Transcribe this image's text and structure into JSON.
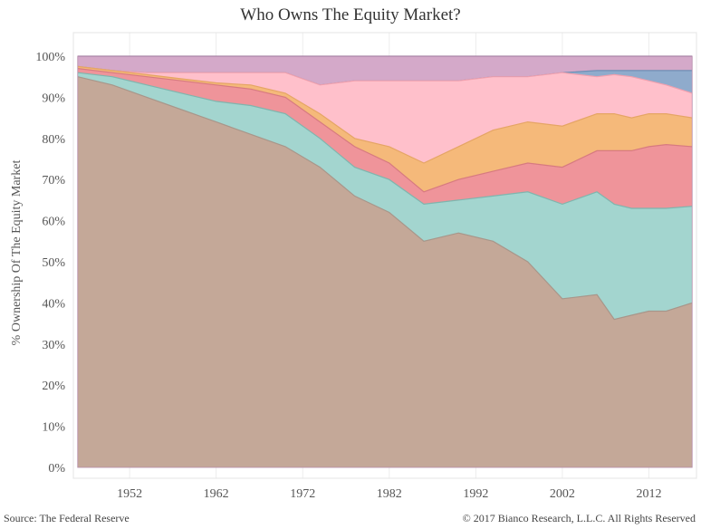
{
  "chart_data": {
    "type": "area",
    "stacked": true,
    "title": "Who Owns The Equity Market?",
    "ylabel": "% Ownership Of The Equity Market",
    "xlabel": "",
    "source": "Source: The Federal Reserve",
    "copyright": "© 2017 Bianco Research, L.L.C. All Rights Reserved",
    "xlim": [
      1945.5,
      2017.5
    ],
    "ylim": [
      0,
      100
    ],
    "x_ticks": [
      1952,
      1962,
      1972,
      1982,
      1992,
      2002,
      2012
    ],
    "x_tick_labels": [
      "1952",
      "1962",
      "1972",
      "1982",
      "1992",
      "2002",
      "2012"
    ],
    "y_ticks": [
      0,
      10,
      20,
      30,
      40,
      50,
      60,
      70,
      80,
      90,
      100
    ],
    "y_tick_labels": [
      "0%",
      "10%",
      "20%",
      "30%",
      "40%",
      "50%",
      "60%",
      "70%",
      "80%",
      "90%",
      "100%"
    ],
    "grid": "vertical",
    "legend": "none",
    "x": [
      1946,
      1950,
      1954,
      1958,
      1962,
      1966,
      1970,
      1974,
      1978,
      1982,
      1986,
      1990,
      1994,
      1998,
      2002,
      2006,
      2008,
      2010,
      2012,
      2014,
      2017
    ],
    "upper_edges": [
      [
        95,
        93,
        90,
        87,
        84,
        81,
        78,
        73,
        66,
        62,
        55,
        57,
        55,
        50,
        41,
        42,
        36,
        37,
        38,
        38,
        40
      ],
      [
        96,
        95,
        93,
        91,
        89,
        88,
        86,
        80,
        73,
        70,
        64,
        65,
        66,
        67,
        64,
        67,
        64,
        63,
        63,
        63,
        63.5
      ],
      [
        97,
        96,
        95,
        94,
        93,
        92,
        90,
        84,
        78,
        74,
        67,
        70,
        72,
        74,
        73,
        77,
        77,
        77,
        78,
        78.5,
        78
      ],
      [
        97.5,
        96.5,
        95.5,
        94.5,
        93.5,
        93,
        91,
        86,
        80,
        78,
        74,
        78,
        82,
        84,
        83,
        86,
        86,
        85,
        86,
        86,
        85
      ],
      [
        97.5,
        96.5,
        96,
        96,
        96,
        96,
        96,
        93,
        94,
        94,
        94,
        94,
        95,
        95,
        96,
        95,
        95.5,
        95,
        94,
        93,
        91
      ],
      [
        97.5,
        96.5,
        96,
        96,
        96,
        96,
        96,
        93,
        94,
        94,
        94,
        94,
        95,
        95,
        96,
        96.5,
        96.5,
        96.5,
        96.5,
        96.5,
        96.5
      ],
      [
        100,
        100,
        100,
        100,
        100,
        100,
        100,
        100,
        100,
        100,
        100,
        100,
        100,
        100,
        100,
        100,
        100,
        100,
        100,
        100,
        100
      ]
    ],
    "series_colors": [
      "#c4a898",
      "#a3d5cf",
      "#ef949a",
      "#f5b97a",
      "#ffc0cb",
      "#8fabcc",
      "#d4a9c9"
    ],
    "series_lines": [
      "#a8968a",
      "#7fb5ae",
      "#d77a80",
      "#e5a565",
      "#f0a0ae",
      "#6f8fb5",
      "#9a7fa8"
    ]
  }
}
